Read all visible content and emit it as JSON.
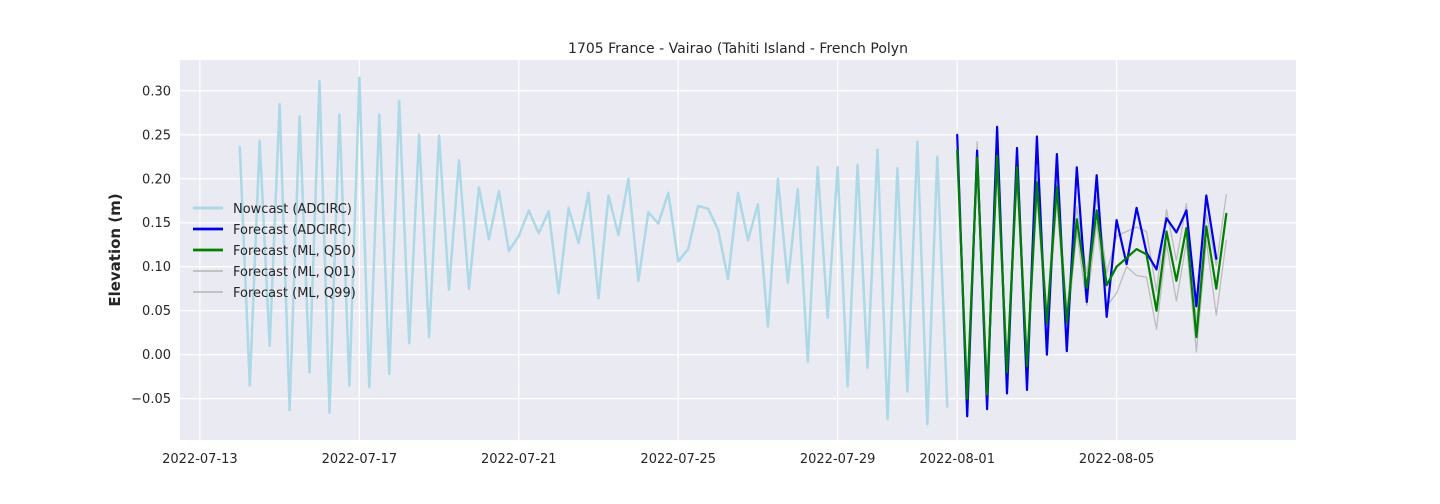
{
  "chart_data": {
    "type": "line",
    "title": "1705 France - Vairao (Tahiti Island - French Polyn",
    "xlabel": "",
    "ylabel": "Elevation (m)",
    "x_axis_type": "date",
    "xlim": [
      "2022-07-12T12:00",
      "2022-08-09T12:00"
    ],
    "ylim": [
      -0.097,
      0.335
    ],
    "grid": true,
    "legend_position": "center-left",
    "x_ticks": [
      "2022-07-13",
      "2022-07-17",
      "2022-07-21",
      "2022-07-25",
      "2022-07-29",
      "2022-08-01",
      "2022-08-05"
    ],
    "y_ticks": [
      -0.05,
      0.0,
      0.05,
      0.1,
      0.15,
      0.2,
      0.25,
      0.3
    ],
    "y_tick_labels": [
      "−0.05",
      "0.00",
      "0.05",
      "0.10",
      "0.15",
      "0.20",
      "0.25",
      "0.30"
    ],
    "series": [
      {
        "name": "Nowcast (ADCIRC)",
        "color": "#add8e6",
        "line_width": 2.5,
        "x": [
          "2022-07-14T00:00",
          "2022-07-14T06:00",
          "2022-07-14T12:00",
          "2022-07-14T18:00",
          "2022-07-15T00:00",
          "2022-07-15T06:00",
          "2022-07-15T12:00",
          "2022-07-15T18:00",
          "2022-07-16T00:00",
          "2022-07-16T06:00",
          "2022-07-16T12:00",
          "2022-07-16T18:00",
          "2022-07-17T00:00",
          "2022-07-17T06:00",
          "2022-07-17T12:00",
          "2022-07-17T18:00",
          "2022-07-18T00:00",
          "2022-07-18T06:00",
          "2022-07-18T12:00",
          "2022-07-18T18:00",
          "2022-07-19T00:00",
          "2022-07-19T06:00",
          "2022-07-19T12:00",
          "2022-07-19T18:00",
          "2022-07-20T00:00",
          "2022-07-20T06:00",
          "2022-07-20T12:00",
          "2022-07-20T18:00",
          "2022-07-21T00:00",
          "2022-07-21T06:00",
          "2022-07-21T12:00",
          "2022-07-21T18:00",
          "2022-07-22T00:00",
          "2022-07-22T06:00",
          "2022-07-22T12:00",
          "2022-07-22T18:00",
          "2022-07-23T00:00",
          "2022-07-23T06:00",
          "2022-07-23T12:00",
          "2022-07-23T18:00",
          "2022-07-24T00:00",
          "2022-07-24T06:00",
          "2022-07-24T12:00",
          "2022-07-24T18:00",
          "2022-07-25T00:00",
          "2022-07-25T06:00",
          "2022-07-25T12:00",
          "2022-07-25T18:00",
          "2022-07-26T00:00",
          "2022-07-26T06:00",
          "2022-07-26T12:00",
          "2022-07-26T18:00",
          "2022-07-27T00:00",
          "2022-07-27T06:00",
          "2022-07-27T12:00",
          "2022-07-27T18:00",
          "2022-07-28T00:00",
          "2022-07-28T06:00",
          "2022-07-28T12:00",
          "2022-07-28T18:00",
          "2022-07-29T00:00",
          "2022-07-29T06:00",
          "2022-07-29T12:00",
          "2022-07-29T18:00",
          "2022-07-30T00:00",
          "2022-07-30T06:00",
          "2022-07-30T12:00",
          "2022-07-30T18:00",
          "2022-07-31T00:00",
          "2022-07-31T06:00",
          "2022-07-31T12:00",
          "2022-07-31T18:00"
        ],
        "values": [
          0.236,
          -0.035,
          0.243,
          0.01,
          0.285,
          -0.063,
          0.271,
          -0.02,
          0.311,
          -0.066,
          0.273,
          -0.035,
          0.315,
          -0.037,
          0.273,
          -0.022,
          0.288,
          0.013,
          0.25,
          0.02,
          0.249,
          0.074,
          0.221,
          0.075,
          0.19,
          0.131,
          0.186,
          0.118,
          0.135,
          0.164,
          0.138,
          0.163,
          0.07,
          0.167,
          0.127,
          0.184,
          0.064,
          0.181,
          0.136,
          0.2,
          0.084,
          0.162,
          0.149,
          0.184,
          0.106,
          0.12,
          0.169,
          0.166,
          0.142,
          0.086,
          0.184,
          0.13,
          0.171,
          0.032,
          0.2,
          0.082,
          0.188,
          -0.008,
          0.213,
          0.042,
          0.213,
          -0.036,
          0.216,
          -0.015,
          0.233,
          -0.073,
          0.212,
          -0.042,
          0.242,
          -0.079,
          0.225,
          -0.059
        ]
      },
      {
        "name": "Forecast (ADCIRC)",
        "color": "#0000ee",
        "line_width": 2.2,
        "x": [
          "2022-08-01T00:00",
          "2022-08-01T06:00",
          "2022-08-01T12:00",
          "2022-08-01T18:00",
          "2022-08-02T00:00",
          "2022-08-02T06:00",
          "2022-08-02T12:00",
          "2022-08-02T18:00",
          "2022-08-03T00:00",
          "2022-08-03T06:00",
          "2022-08-03T12:00",
          "2022-08-03T18:00",
          "2022-08-04T00:00",
          "2022-08-04T06:00",
          "2022-08-04T12:00",
          "2022-08-04T18:00",
          "2022-08-05T00:00",
          "2022-08-05T06:00",
          "2022-08-05T12:00",
          "2022-08-05T18:00",
          "2022-08-06T00:00",
          "2022-08-06T06:00",
          "2022-08-06T12:00",
          "2022-08-06T18:00",
          "2022-08-07T00:00",
          "2022-08-07T06:00",
          "2022-08-07T12:00"
        ],
        "values": [
          0.25,
          -0.07,
          0.232,
          -0.062,
          0.259,
          -0.044,
          0.235,
          -0.04,
          0.248,
          0.0,
          0.228,
          0.004,
          0.213,
          0.06,
          0.204,
          0.043,
          0.153,
          0.103,
          0.167,
          0.116,
          0.097,
          0.155,
          0.139,
          0.164,
          0.055,
          0.181,
          0.109
        ]
      },
      {
        "name": "Forecast (ML, Q50)",
        "color": "#008000",
        "line_width": 2.2,
        "x": [
          "2022-08-01T00:00",
          "2022-08-01T06:00",
          "2022-08-01T12:00",
          "2022-08-01T18:00",
          "2022-08-02T00:00",
          "2022-08-02T06:00",
          "2022-08-02T12:00",
          "2022-08-02T18:00",
          "2022-08-03T00:00",
          "2022-08-03T06:00",
          "2022-08-03T12:00",
          "2022-08-03T18:00",
          "2022-08-04T00:00",
          "2022-08-04T06:00",
          "2022-08-04T12:00",
          "2022-08-04T18:00",
          "2022-08-05T00:00",
          "2022-08-05T06:00",
          "2022-08-05T12:00",
          "2022-08-05T18:00",
          "2022-08-06T00:00",
          "2022-08-06T06:00",
          "2022-08-06T12:00",
          "2022-08-06T18:00",
          "2022-08-07T00:00",
          "2022-08-07T06:00",
          "2022-08-07T12:00",
          "2022-08-07T18:00"
        ],
        "values": [
          0.232,
          -0.05,
          0.224,
          -0.045,
          0.226,
          -0.02,
          0.213,
          -0.013,
          0.196,
          0.036,
          0.191,
          0.037,
          0.154,
          0.076,
          0.164,
          0.079,
          0.1,
          0.11,
          0.12,
          0.114,
          0.05,
          0.14,
          0.084,
          0.144,
          0.02,
          0.146,
          0.075,
          0.16
        ]
      },
      {
        "name": "Forecast (ML, Q01)",
        "color": "#bdbdbd",
        "line_width": 1.3,
        "x": [
          "2022-08-01T00:00",
          "2022-08-01T06:00",
          "2022-08-01T12:00",
          "2022-08-01T18:00",
          "2022-08-02T00:00",
          "2022-08-02T06:00",
          "2022-08-02T12:00",
          "2022-08-02T18:00",
          "2022-08-03T00:00",
          "2022-08-03T06:00",
          "2022-08-03T12:00",
          "2022-08-03T18:00",
          "2022-08-04T00:00",
          "2022-08-04T06:00",
          "2022-08-04T12:00",
          "2022-08-04T18:00",
          "2022-08-05T00:00",
          "2022-08-05T06:00",
          "2022-08-05T12:00",
          "2022-08-05T18:00",
          "2022-08-06T00:00",
          "2022-08-06T06:00",
          "2022-08-06T12:00",
          "2022-08-06T18:00",
          "2022-08-07T00:00",
          "2022-08-07T06:00",
          "2022-08-07T12:00",
          "2022-08-07T18:00"
        ],
        "values": [
          0.22,
          -0.06,
          0.21,
          -0.055,
          0.21,
          -0.03,
          0.198,
          -0.022,
          0.18,
          0.025,
          0.175,
          0.025,
          0.14,
          0.056,
          0.15,
          0.055,
          0.07,
          0.1,
          0.09,
          0.088,
          0.029,
          0.126,
          0.061,
          0.128,
          0.003,
          0.13,
          0.045,
          0.13
        ]
      },
      {
        "name": "Forecast (ML, Q99)",
        "color": "#bdbdbd",
        "line_width": 1.3,
        "x": [
          "2022-08-01T00:00",
          "2022-08-01T06:00",
          "2022-08-01T12:00",
          "2022-08-01T18:00",
          "2022-08-02T00:00",
          "2022-08-02T06:00",
          "2022-08-02T12:00",
          "2022-08-02T18:00",
          "2022-08-03T00:00",
          "2022-08-03T06:00",
          "2022-08-03T12:00",
          "2022-08-03T18:00",
          "2022-08-04T00:00",
          "2022-08-04T06:00",
          "2022-08-04T12:00",
          "2022-08-04T18:00",
          "2022-08-05T00:00",
          "2022-08-05T06:00",
          "2022-08-05T12:00",
          "2022-08-05T18:00",
          "2022-08-06T00:00",
          "2022-08-06T06:00",
          "2022-08-06T12:00",
          "2022-08-06T18:00",
          "2022-08-07T00:00",
          "2022-08-07T06:00",
          "2022-08-07T12:00",
          "2022-08-07T18:00"
        ],
        "values": [
          0.244,
          -0.04,
          0.242,
          -0.035,
          0.24,
          -0.01,
          0.228,
          -0.005,
          0.21,
          0.047,
          0.205,
          0.049,
          0.168,
          0.092,
          0.18,
          0.093,
          0.135,
          0.14,
          0.145,
          0.14,
          0.072,
          0.165,
          0.107,
          0.172,
          0.036,
          0.16,
          0.101,
          0.182
        ]
      }
    ]
  }
}
